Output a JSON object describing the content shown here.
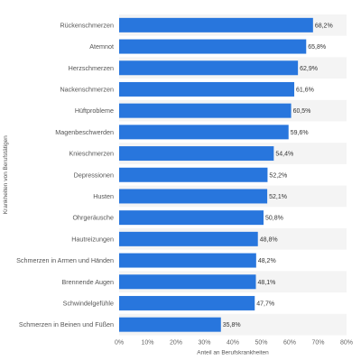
{
  "chart_data": {
    "type": "bar",
    "orientation": "horizontal",
    "title": "",
    "xlabel": "Anteil an Berufskrankheiten",
    "ylabel": "Krankheiten von Berufstätigen",
    "xlim": [
      0,
      80
    ],
    "x_ticks": [
      "0%",
      "10%",
      "20%",
      "30%",
      "40%",
      "50%",
      "60%",
      "70%",
      "80%"
    ],
    "grid": false,
    "bar_color": "#2876dd",
    "band_color": "#f4f4f4",
    "categories": [
      "Rückenschmerzen",
      "Atemnot",
      "Herzschmerzen",
      "Nackenschmerzen",
      "Hüftprobleme",
      "Magenbeschwerden",
      "Knieschmerzen",
      "Depressionen",
      "Husten",
      "Ohrgeräusche",
      "Hautreizungen",
      "Schmerzen in Armen und Händen",
      "Brennende Augen",
      "Schwindelgefühle",
      "Schmerzen in Beinen und Füßen"
    ],
    "values": [
      68.2,
      65.8,
      62.9,
      61.6,
      60.5,
      59.6,
      54.4,
      52.2,
      52.1,
      50.8,
      48.8,
      48.2,
      48.1,
      47.7,
      35.8
    ],
    "value_labels": [
      "68,2%",
      "65,8%",
      "62,9%",
      "61,6%",
      "60,5%",
      "59,6%",
      "54,4%",
      "52,2%",
      "52,1%",
      "50,8%",
      "48,8%",
      "48,2%",
      "48,1%",
      "47,7%",
      "35,8%"
    ]
  }
}
